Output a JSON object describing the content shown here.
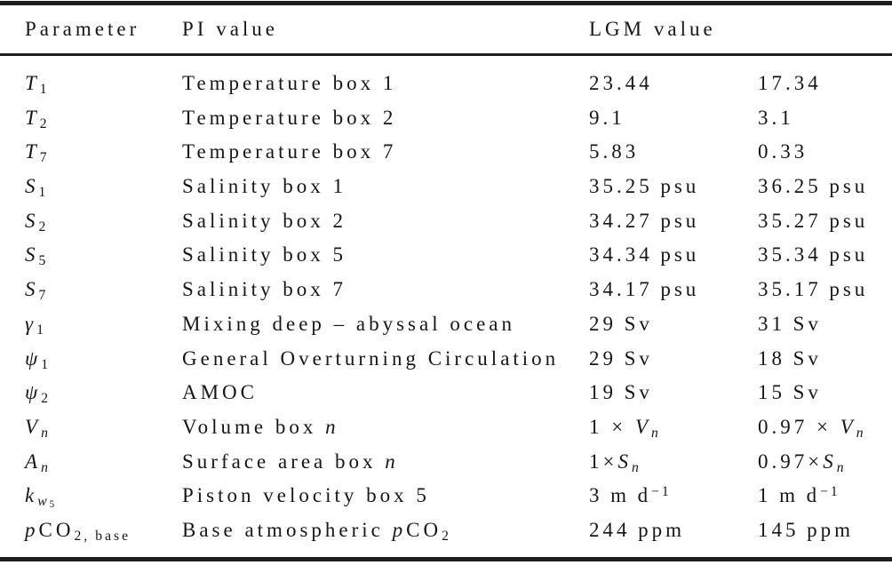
{
  "colors": {
    "background": "#ffffff",
    "text": "#161616",
    "rule": "#1d1d1d"
  },
  "table": {
    "header": {
      "parameter": "Parameter",
      "pi_value": "PI value",
      "lgm_value": "LGM value",
      "col4": ""
    },
    "rows": [
      {
        "param": [
          [
            "T",
            "i"
          ],
          [
            "1",
            "s"
          ]
        ],
        "description": [
          [
            "Temperature box 1",
            ""
          ]
        ],
        "pi": [
          [
            "23.44",
            ""
          ]
        ],
        "lgm": [
          [
            "17.34",
            ""
          ]
        ]
      },
      {
        "param": [
          [
            "T",
            "i"
          ],
          [
            "2",
            "s"
          ]
        ],
        "description": [
          [
            "Temperature box 2",
            ""
          ]
        ],
        "pi": [
          [
            "9.1",
            ""
          ]
        ],
        "lgm": [
          [
            "3.1",
            ""
          ]
        ]
      },
      {
        "param": [
          [
            "T",
            "i"
          ],
          [
            "7",
            "s"
          ]
        ],
        "description": [
          [
            "Temperature box 7",
            ""
          ]
        ],
        "pi": [
          [
            "5.83",
            ""
          ]
        ],
        "lgm": [
          [
            "0.33",
            ""
          ]
        ]
      },
      {
        "param": [
          [
            "S",
            "i"
          ],
          [
            "1",
            "s"
          ]
        ],
        "description": [
          [
            "Salinity box 1",
            ""
          ]
        ],
        "pi": [
          [
            "35.25 psu",
            ""
          ]
        ],
        "lgm": [
          [
            "36.25 psu",
            ""
          ]
        ]
      },
      {
        "param": [
          [
            "S",
            "i"
          ],
          [
            "2",
            "s"
          ]
        ],
        "description": [
          [
            "Salinity box 2",
            ""
          ]
        ],
        "pi": [
          [
            "34.27 psu",
            ""
          ]
        ],
        "lgm": [
          [
            "35.27 psu",
            ""
          ]
        ]
      },
      {
        "param": [
          [
            "S",
            "i"
          ],
          [
            "5",
            "s"
          ]
        ],
        "description": [
          [
            "Salinity box 5",
            ""
          ]
        ],
        "pi": [
          [
            "34.34 psu",
            ""
          ]
        ],
        "lgm": [
          [
            "35.34 psu",
            ""
          ]
        ]
      },
      {
        "param": [
          [
            "S",
            "i"
          ],
          [
            "7",
            "s"
          ]
        ],
        "description": [
          [
            "Salinity box 7",
            ""
          ]
        ],
        "pi": [
          [
            "34.17 psu",
            ""
          ]
        ],
        "lgm": [
          [
            "35.17 psu",
            ""
          ]
        ]
      },
      {
        "param": [
          [
            "γ",
            "i"
          ],
          [
            "1",
            "s"
          ]
        ],
        "description": [
          [
            "Mixing deep – abyssal ocean",
            ""
          ]
        ],
        "pi": [
          [
            "29 Sv",
            ""
          ]
        ],
        "lgm": [
          [
            "31 Sv",
            ""
          ]
        ]
      },
      {
        "param": [
          [
            "ψ",
            "i"
          ],
          [
            "1",
            "s"
          ]
        ],
        "description": [
          [
            "General Overturning Circulation",
            ""
          ]
        ],
        "pi": [
          [
            "29 Sv",
            ""
          ]
        ],
        "lgm": [
          [
            "18 Sv",
            ""
          ]
        ]
      },
      {
        "param": [
          [
            "ψ",
            "i"
          ],
          [
            "2",
            "s"
          ]
        ],
        "description": [
          [
            "AMOC",
            ""
          ]
        ],
        "pi": [
          [
            "19 Sv",
            ""
          ]
        ],
        "lgm": [
          [
            "15 Sv",
            ""
          ]
        ]
      },
      {
        "param": [
          [
            "V",
            "i"
          ],
          [
            "n",
            "is"
          ]
        ],
        "description": [
          [
            "Volume box ",
            ""
          ],
          [
            "n",
            "i"
          ]
        ],
        "pi": [
          [
            "1 × ",
            ""
          ],
          [
            "V",
            "i"
          ],
          [
            "n",
            "is"
          ]
        ],
        "lgm": [
          [
            "0.97 × ",
            ""
          ],
          [
            "V",
            "i"
          ],
          [
            "n",
            "is"
          ]
        ]
      },
      {
        "param": [
          [
            "A",
            "i"
          ],
          [
            "n",
            "is"
          ]
        ],
        "description": [
          [
            "Surface area box ",
            ""
          ],
          [
            "n",
            "i"
          ]
        ],
        "pi": [
          [
            "1×",
            ""
          ],
          [
            "S",
            "i"
          ],
          [
            "n",
            "is"
          ]
        ],
        "lgm": [
          [
            "0.97×",
            ""
          ],
          [
            "S",
            "i"
          ],
          [
            "n",
            "is"
          ]
        ]
      },
      {
        "param": [
          [
            "k",
            "i"
          ],
          [
            "w",
            "is"
          ],
          [
            "5",
            "S"
          ]
        ],
        "description": [
          [
            "Piston velocity box 5",
            ""
          ]
        ],
        "pi": [
          [
            "3 m d",
            ""
          ],
          [
            "−1",
            "p"
          ]
        ],
        "lgm": [
          [
            "1 m d",
            ""
          ],
          [
            "−1",
            "p"
          ]
        ]
      },
      {
        "param": [
          [
            "p",
            "i"
          ],
          [
            "CO",
            ""
          ],
          [
            "2, base",
            "s"
          ]
        ],
        "description": [
          [
            "Base atmospheric ",
            ""
          ],
          [
            "p",
            "i"
          ],
          [
            "CO",
            ""
          ],
          [
            "2",
            "s"
          ]
        ],
        "pi": [
          [
            "244 ppm",
            ""
          ]
        ],
        "lgm": [
          [
            "145 ppm",
            ""
          ]
        ]
      }
    ]
  }
}
